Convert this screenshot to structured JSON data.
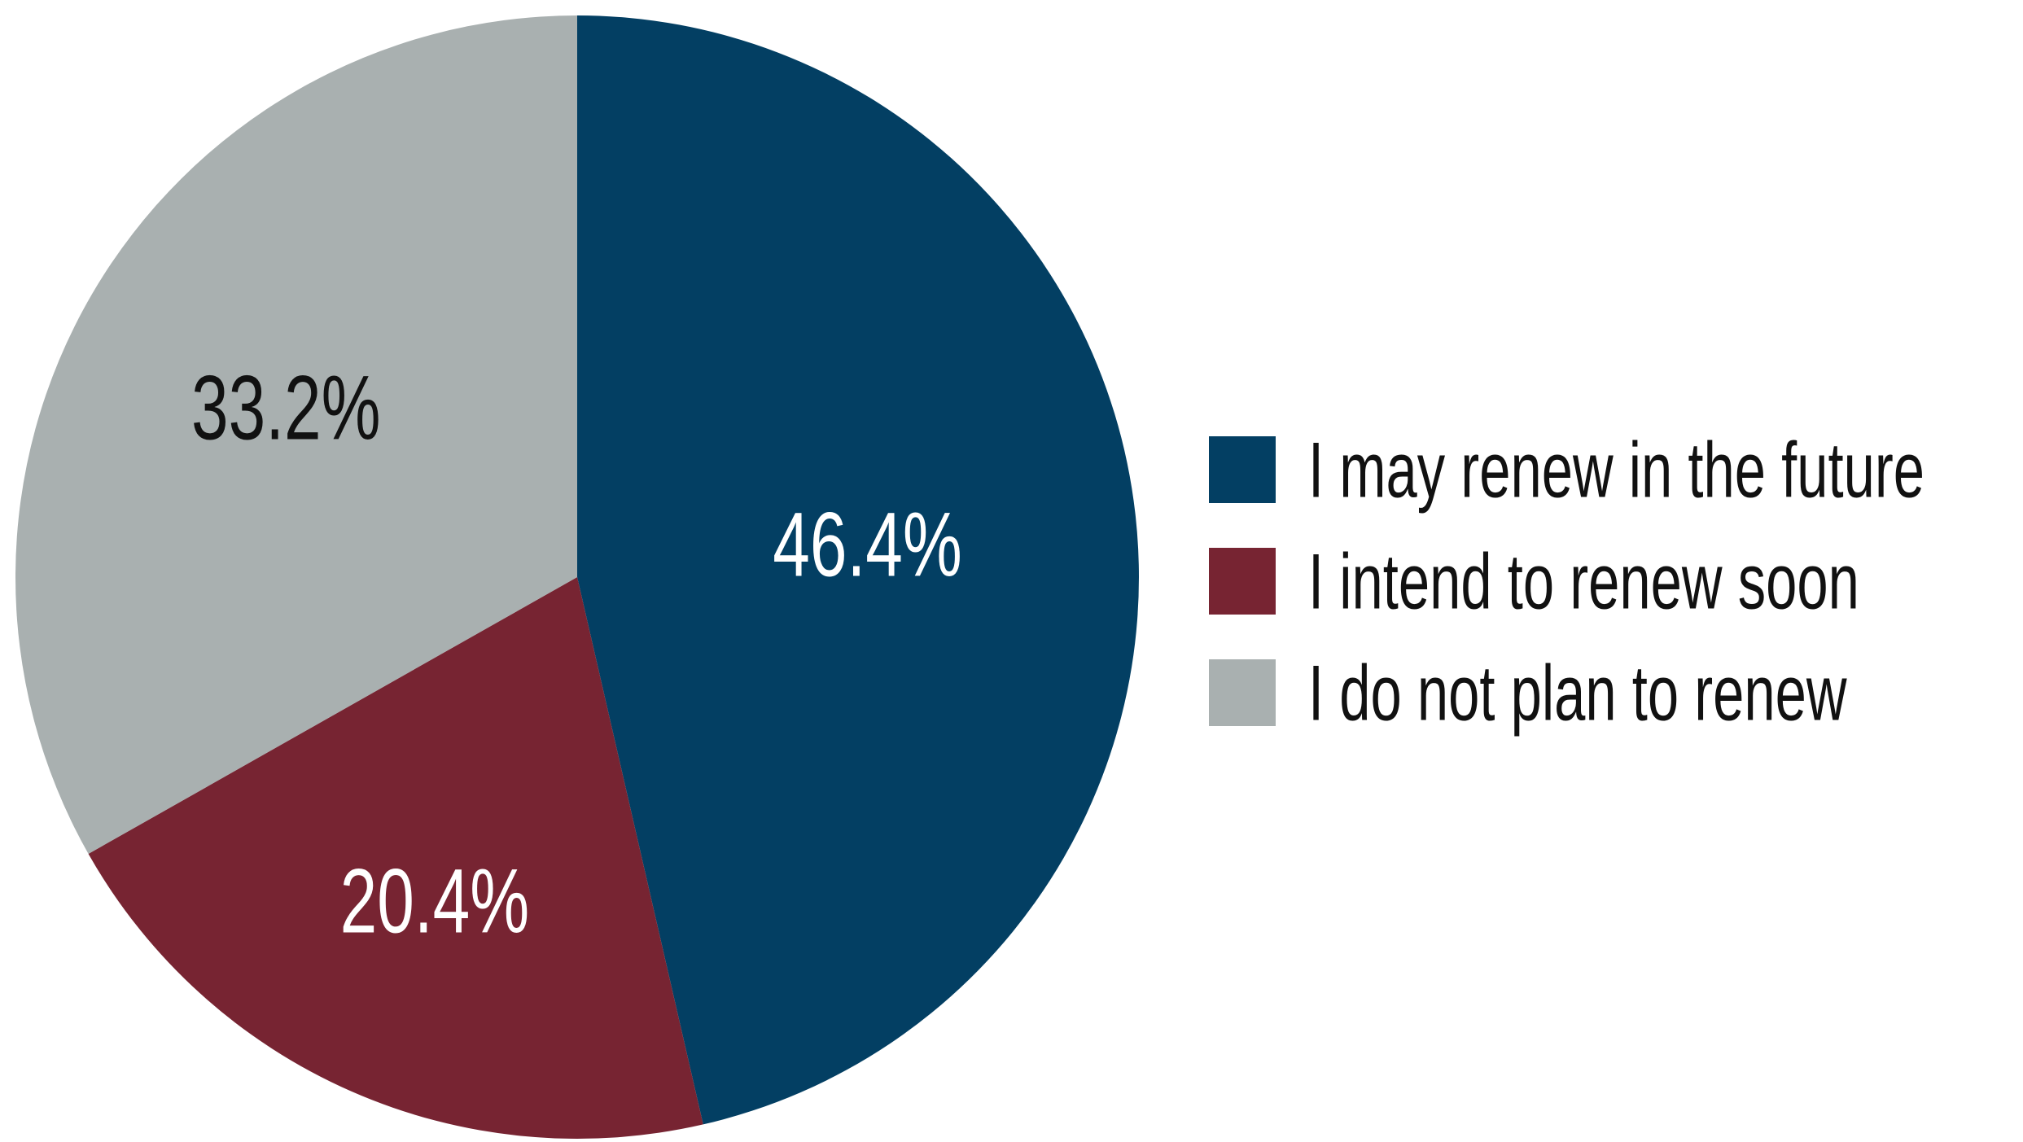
{
  "chart_data": {
    "type": "pie",
    "title": "",
    "slices": [
      {
        "label": "I may renew in the future",
        "value": 46.4,
        "display": "46.4%",
        "color": "#033f63",
        "label_color": "#ffffff"
      },
      {
        "label": "I intend to renew soon",
        "value": 20.4,
        "display": "20.4%",
        "color": "#772432",
        "label_color": "#ffffff"
      },
      {
        "label": "I do not plan to renew",
        "value": 33.2,
        "display": "33.2%",
        "color": "#a9b0b0",
        "label_color": "#111111"
      }
    ],
    "start_angle": "12 o'clock",
    "direction": "clockwise",
    "legend": {
      "position": "right",
      "entries": [
        "I may renew in the future",
        "I intend to renew soon",
        "I do not plan to renew"
      ]
    }
  }
}
